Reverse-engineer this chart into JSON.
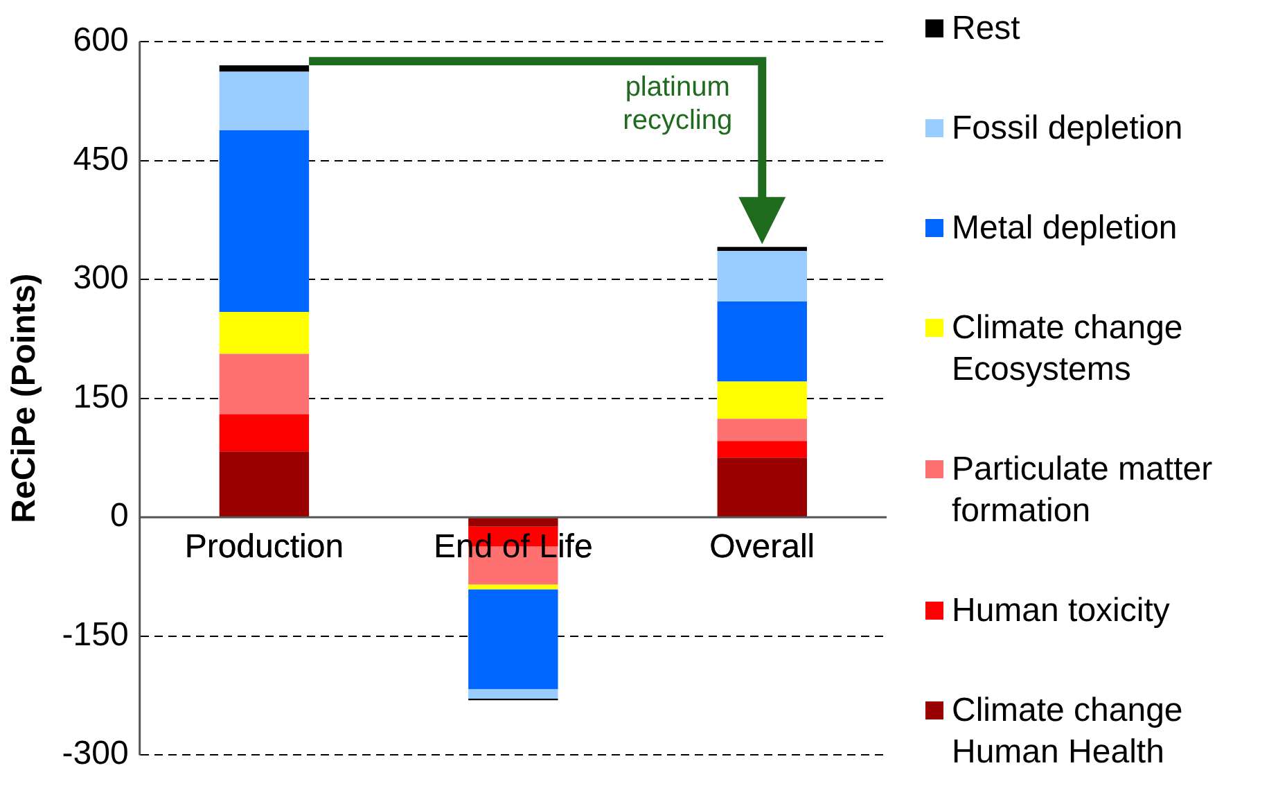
{
  "chart_data": {
    "type": "bar",
    "stacked": true,
    "ylabel": "ReCiPe (Points)",
    "categories": [
      "Production",
      "End of Life",
      "Overall"
    ],
    "ylim": [
      -300,
      600
    ],
    "yticks": [
      -300,
      -150,
      0,
      150,
      300,
      450,
      600
    ],
    "grid": "y",
    "legend": "right",
    "series": [
      {
        "name": "Climate change Human Health",
        "color": "#990000",
        "values": [
          83,
          -12,
          75
        ]
      },
      {
        "name": "Human toxicity",
        "color": "#ff0000",
        "values": [
          47,
          -25,
          21
        ]
      },
      {
        "name": "Particulate matter formation",
        "color": "#ff7171",
        "values": [
          76,
          -48,
          28
        ]
      },
      {
        "name": "Climate change Ecosystems",
        "color": "#ffff00",
        "values": [
          53,
          -6,
          47
        ]
      },
      {
        "name": "Metal depletion",
        "color": "#0066ff",
        "values": [
          229,
          -126,
          101
        ]
      },
      {
        "name": "Fossil depletion",
        "color": "#99ccff",
        "values": [
          74,
          -12,
          64
        ]
      },
      {
        "name": "Rest",
        "color": "#000000",
        "values": [
          8,
          -2,
          5
        ]
      }
    ],
    "annotations": [
      "platinum recycling"
    ]
  }
}
